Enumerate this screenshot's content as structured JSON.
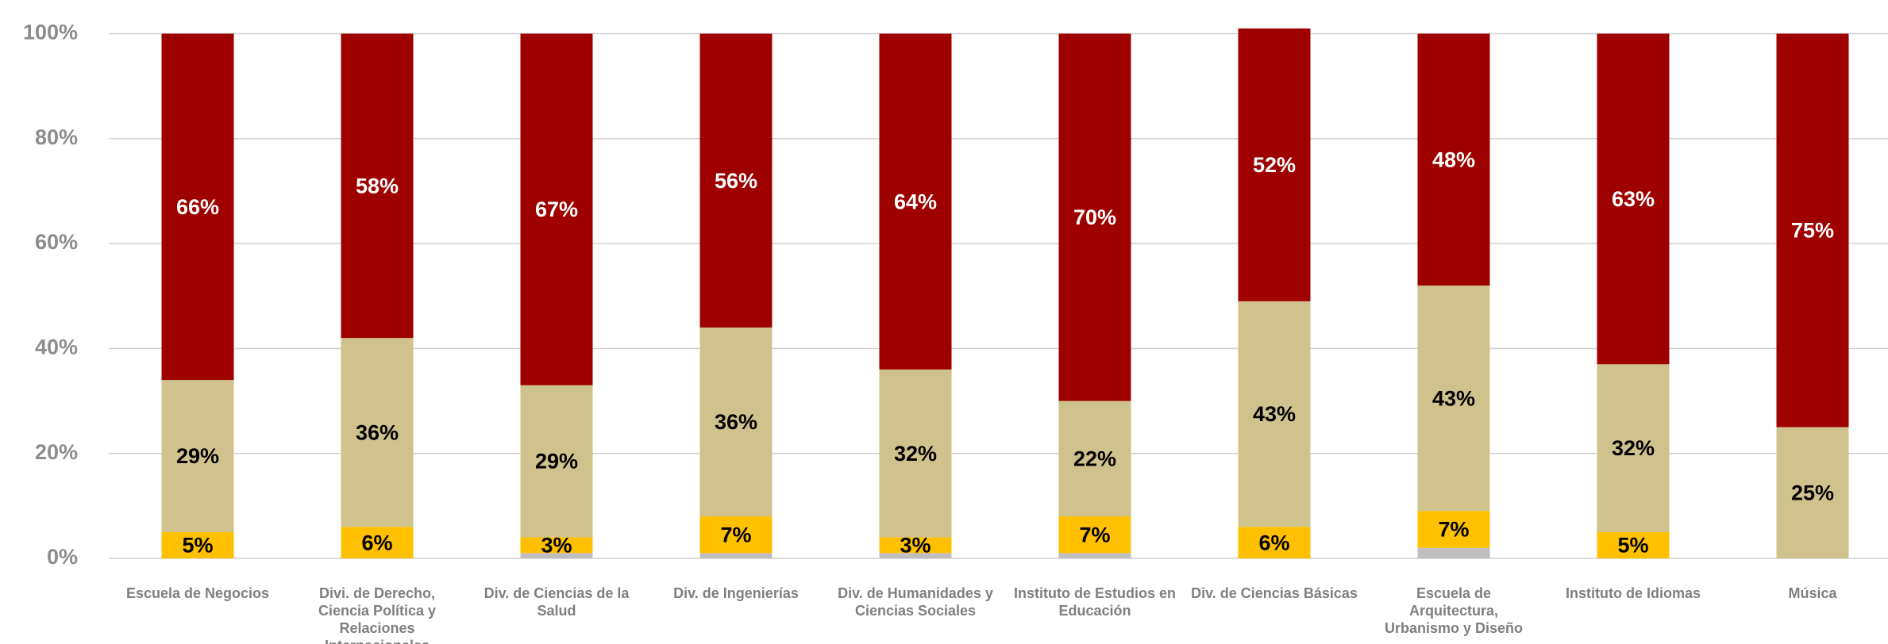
{
  "chart_data": {
    "type": "stacked_bar",
    "categories": [
      "Escuela de Negocios",
      "Divi. de Derecho, Ciencia Política y Relaciones Internacionales",
      "Div. de Ciencias de la Salud",
      "Div. de Ingenierías",
      "Div. de Humanidades y Ciencias Sociales",
      "Instituto de Estudios en Educación",
      "Div. de Ciencias Básicas",
      "Escuela de Arquitectura, Urbanismo y Diseño",
      "Instituto de Idiomas",
      "Música"
    ],
    "series": [
      {
        "color": "#bfbfbf",
        "values": [
          0,
          0,
          1,
          1,
          1,
          1,
          0,
          2,
          0,
          0
        ],
        "value_labels": [
          null,
          null,
          null,
          null,
          null,
          null,
          null,
          null,
          null,
          null
        ]
      },
      {
        "color": "#ffc000",
        "values": [
          5,
          6,
          3,
          7,
          3,
          7,
          6,
          7,
          5,
          0
        ],
        "value_labels": [
          "5%",
          "6%",
          "3%",
          "7%",
          "3%",
          "7%",
          "6%",
          "7%",
          "5%",
          null
        ]
      },
      {
        "color": "#cfc28c",
        "values": [
          29,
          36,
          29,
          36,
          32,
          22,
          43,
          43,
          32,
          25
        ],
        "value_labels": [
          "29%",
          "36%",
          "29%",
          "36%",
          "32%",
          "22%",
          "43%",
          "43%",
          "32%",
          "25%"
        ]
      },
      {
        "color": "#9e0000",
        "values": [
          66,
          58,
          67,
          56,
          64,
          70,
          52,
          48,
          63,
          75
        ],
        "value_labels": [
          "66%",
          "58%",
          "67%",
          "56%",
          "64%",
          "70%",
          "52%",
          "48%",
          "63%",
          "75%"
        ]
      }
    ],
    "ylim": [
      0,
      100
    ],
    "yticks": [
      {
        "value": 0,
        "label": "0%"
      },
      {
        "value": 20,
        "label": "20%"
      },
      {
        "value": 40,
        "label": "40%"
      },
      {
        "value": 60,
        "label": "60%"
      },
      {
        "value": 80,
        "label": "80%"
      },
      {
        "value": 100,
        "label": "100%"
      }
    ],
    "grid": true
  }
}
